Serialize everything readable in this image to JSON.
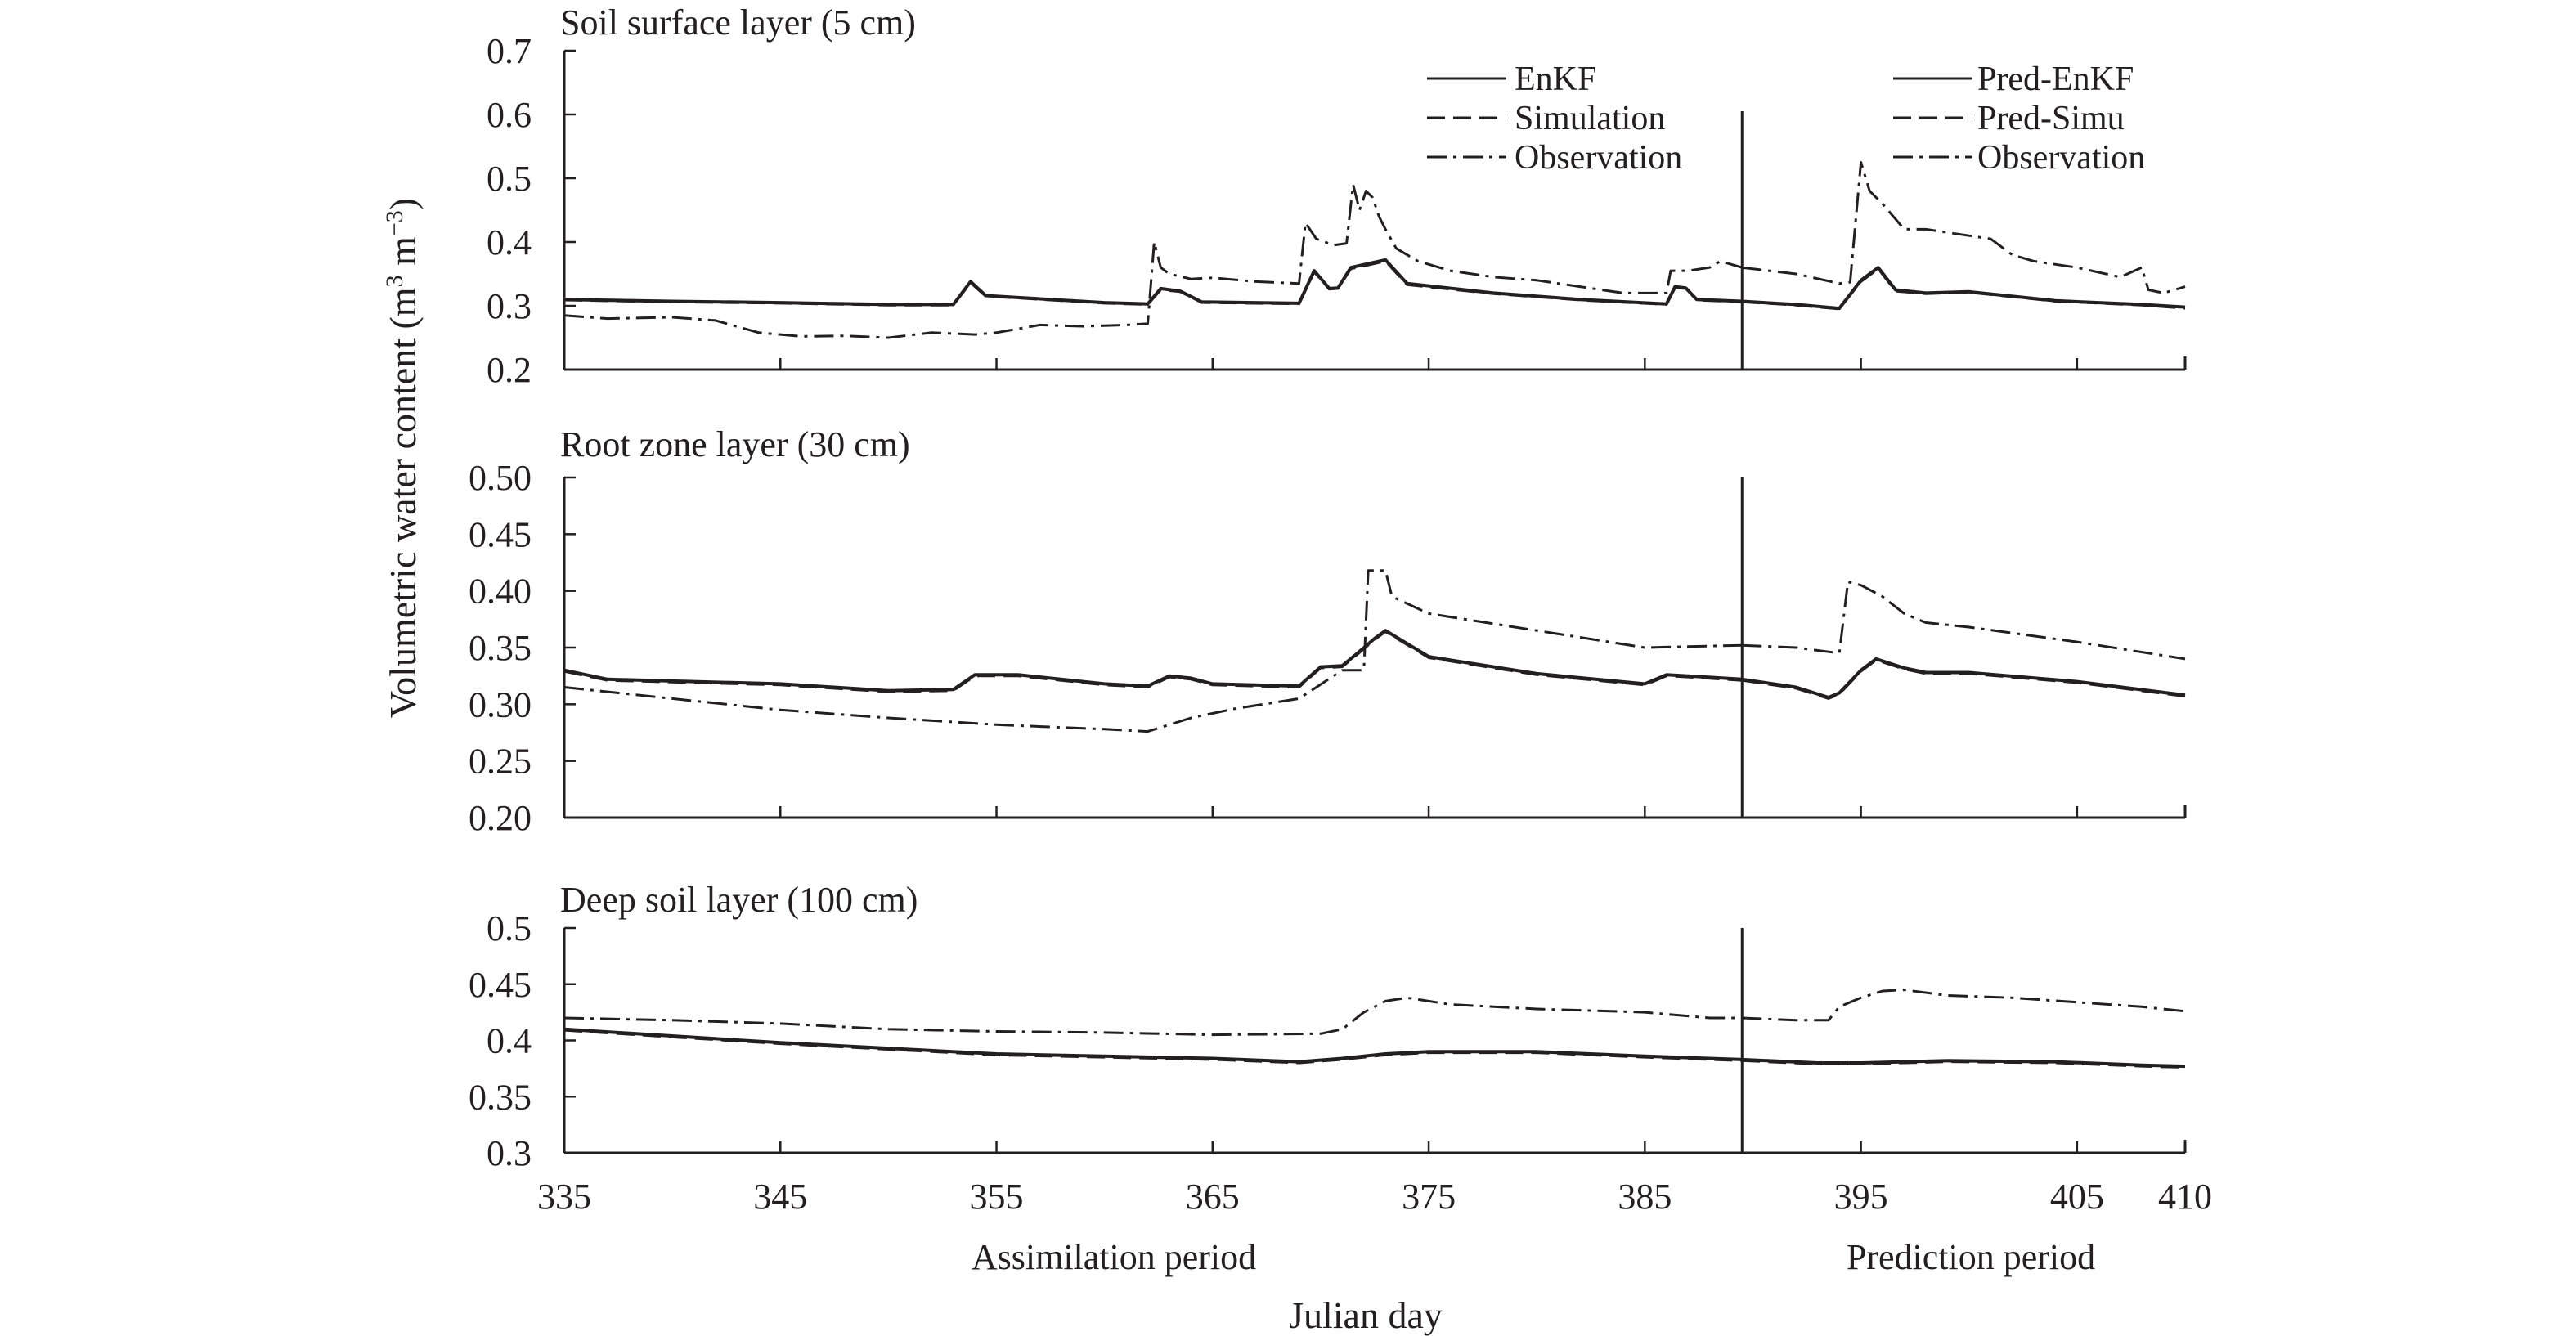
{
  "chart_data": [
    {
      "type": "line",
      "title": "Soil surface layer (5 cm)",
      "ylim": [
        0.2,
        0.7
      ],
      "yticks": [
        "0.2",
        "0.3",
        "0.4",
        "0.5",
        "0.6",
        "0.7"
      ],
      "series": [
        {
          "name": "EnKF",
          "style": "solid",
          "x": [
            335,
            340,
            345,
            350,
            353,
            353.8,
            354.5,
            356,
            360,
            362,
            362.6,
            363.5,
            364.5,
            369,
            369.7,
            370.4,
            370.8,
            371.4,
            372.2,
            373,
            374,
            378,
            382,
            386,
            386.4,
            386.9,
            387.4,
            389.5
          ],
          "y": [
            0.31,
            0.307,
            0.305,
            0.302,
            0.302,
            0.338,
            0.316,
            0.313,
            0.305,
            0.303,
            0.327,
            0.323,
            0.306,
            0.304,
            0.355,
            0.327,
            0.328,
            0.36,
            0.366,
            0.372,
            0.335,
            0.32,
            0.31,
            0.303,
            0.33,
            0.328,
            0.31,
            0.307
          ]
        },
        {
          "name": "Simulation",
          "style": "dashed",
          "x": [
            335,
            340,
            345,
            350,
            353,
            353.8,
            354.5,
            356,
            360,
            362,
            362.6,
            363.5,
            364.5,
            369,
            369.7,
            370.4,
            370.8,
            371.4,
            372.2,
            373,
            374,
            378,
            382,
            386,
            386.4,
            386.9,
            387.4,
            389.5
          ],
          "y": [
            0.309,
            0.306,
            0.304,
            0.301,
            0.301,
            0.336,
            0.315,
            0.312,
            0.304,
            0.302,
            0.325,
            0.322,
            0.305,
            0.303,
            0.353,
            0.326,
            0.327,
            0.358,
            0.364,
            0.37,
            0.333,
            0.319,
            0.309,
            0.302,
            0.328,
            0.327,
            0.309,
            0.306
          ]
        },
        {
          "name": "Observation",
          "style": "dashdot",
          "x": [
            335,
            337,
            340,
            342,
            344,
            346,
            348,
            350,
            352,
            354,
            355,
            357,
            359,
            361,
            362,
            362.3,
            362.6,
            363,
            364,
            365,
            367,
            369,
            369.3,
            369.8,
            370.6,
            371.2,
            371.5,
            371.8,
            372.1,
            372.4,
            372.7,
            373,
            373.5,
            374.5,
            376,
            378,
            380,
            382,
            384,
            386,
            386.2,
            387,
            388,
            388.5,
            389,
            389.5
          ],
          "y": [
            0.285,
            0.28,
            0.282,
            0.277,
            0.258,
            0.252,
            0.253,
            0.25,
            0.258,
            0.255,
            0.258,
            0.27,
            0.268,
            0.27,
            0.272,
            0.4,
            0.36,
            0.35,
            0.342,
            0.344,
            0.338,
            0.335,
            0.43,
            0.405,
            0.395,
            0.398,
            0.49,
            0.45,
            0.48,
            0.47,
            0.44,
            0.42,
            0.39,
            0.37,
            0.355,
            0.345,
            0.34,
            0.33,
            0.32,
            0.32,
            0.355,
            0.355,
            0.36,
            0.37,
            0.365,
            0.36
          ]
        },
        {
          "name": "Pred-EnKF",
          "style": "solid",
          "x": [
            389.5,
            392,
            394,
            395,
            395.8,
            396.6,
            398,
            400,
            404,
            408,
            410
          ],
          "y": [
            0.307,
            0.302,
            0.296,
            0.34,
            0.36,
            0.325,
            0.32,
            0.322,
            0.308,
            0.302,
            0.298
          ]
        },
        {
          "name": "Pred-Simu",
          "style": "dashed",
          "x": [
            389.5,
            392,
            394,
            395,
            395.8,
            396.6,
            398,
            400,
            404,
            408,
            410
          ],
          "y": [
            0.306,
            0.301,
            0.295,
            0.338,
            0.358,
            0.323,
            0.319,
            0.321,
            0.307,
            0.301,
            0.296
          ]
        },
        {
          "name": "Observation",
          "style": "dashdot",
          "x": [
            389.5,
            392,
            394,
            394.5,
            395,
            395.4,
            396,
            397,
            398,
            399,
            400,
            401,
            402,
            403,
            405,
            407,
            408,
            408.3,
            409,
            410
          ],
          "y": [
            0.36,
            0.35,
            0.335,
            0.337,
            0.525,
            0.48,
            0.46,
            0.42,
            0.42,
            0.415,
            0.41,
            0.405,
            0.38,
            0.37,
            0.36,
            0.345,
            0.36,
            0.325,
            0.32,
            0.33
          ]
        }
      ],
      "legend": [
        [
          "EnKF",
          "Simulation",
          "Observation"
        ],
        [
          "Pred-EnKF",
          "Pred-Simu",
          "Observation"
        ]
      ]
    },
    {
      "type": "line",
      "title": "Root zone layer (30 cm)",
      "ylim": [
        0.2,
        0.5
      ],
      "yticks": [
        "0.20",
        "0.25",
        "0.30",
        "0.35",
        "0.40",
        "0.45",
        "0.50"
      ],
      "series": [
        {
          "name": "EnKF",
          "style": "solid",
          "x": [
            335,
            337,
            345,
            350,
            353,
            354,
            356,
            360,
            362,
            363,
            364,
            365,
            369,
            370,
            371,
            371.7,
            372.5,
            373,
            375,
            380,
            385,
            386,
            387,
            389.5
          ],
          "y": [
            0.33,
            0.322,
            0.318,
            0.312,
            0.313,
            0.326,
            0.326,
            0.318,
            0.316,
            0.325,
            0.323,
            0.318,
            0.316,
            0.333,
            0.334,
            0.345,
            0.358,
            0.365,
            0.342,
            0.327,
            0.318,
            0.326,
            0.325,
            0.322
          ]
        },
        {
          "name": "Simulation",
          "style": "dashed",
          "x": [
            335,
            337,
            345,
            350,
            353,
            354,
            356,
            360,
            362,
            363,
            364,
            365,
            369,
            370,
            371,
            371.7,
            372.5,
            373,
            375,
            380,
            385,
            386,
            387,
            389.5
          ],
          "y": [
            0.329,
            0.321,
            0.317,
            0.311,
            0.312,
            0.325,
            0.325,
            0.317,
            0.315,
            0.324,
            0.322,
            0.317,
            0.315,
            0.332,
            0.333,
            0.344,
            0.357,
            0.364,
            0.341,
            0.326,
            0.317,
            0.325,
            0.324,
            0.321
          ]
        },
        {
          "name": "Observation",
          "style": "dashdot",
          "x": [
            335,
            340,
            345,
            350,
            355,
            360,
            362,
            364,
            366,
            369,
            371,
            372,
            372.2,
            373,
            373.3,
            375,
            380,
            385,
            389.5
          ],
          "y": [
            0.315,
            0.305,
            0.295,
            0.288,
            0.282,
            0.278,
            0.276,
            0.288,
            0.296,
            0.305,
            0.33,
            0.33,
            0.418,
            0.418,
            0.395,
            0.38,
            0.365,
            0.35,
            0.352
          ]
        },
        {
          "name": "Pred-EnKF",
          "style": "solid",
          "x": [
            389.5,
            392,
            393.5,
            394,
            395,
            395.7,
            397,
            398,
            400,
            405,
            410
          ],
          "y": [
            0.322,
            0.315,
            0.306,
            0.31,
            0.33,
            0.34,
            0.332,
            0.328,
            0.328,
            0.32,
            0.308
          ]
        },
        {
          "name": "Pred-Simu",
          "style": "dashed",
          "x": [
            389.5,
            392,
            393.5,
            394,
            395,
            395.7,
            397,
            398,
            400,
            405,
            410
          ],
          "y": [
            0.321,
            0.314,
            0.305,
            0.309,
            0.329,
            0.339,
            0.331,
            0.327,
            0.327,
            0.319,
            0.307
          ]
        },
        {
          "name": "Observation",
          "style": "dashdot",
          "x": [
            389.5,
            392,
            394,
            394.4,
            395,
            396,
            397,
            398,
            400,
            405,
            410
          ],
          "y": [
            0.352,
            0.35,
            0.345,
            0.408,
            0.405,
            0.395,
            0.38,
            0.372,
            0.368,
            0.355,
            0.34
          ]
        }
      ],
      "legend": []
    },
    {
      "type": "line",
      "title": "Deep soil layer (100 cm)",
      "ylim": [
        0.3,
        0.5
      ],
      "yticks": [
        "0.3",
        "0.35",
        "0.4",
        "0.45",
        "0.5"
      ],
      "series": [
        {
          "name": "EnKF",
          "style": "solid",
          "x": [
            335,
            345,
            355,
            365,
            369,
            371,
            373,
            375,
            380,
            385,
            389.5
          ],
          "y": [
            0.41,
            0.398,
            0.388,
            0.384,
            0.381,
            0.384,
            0.388,
            0.39,
            0.39,
            0.386,
            0.383
          ]
        },
        {
          "name": "Simulation",
          "style": "dashed",
          "x": [
            335,
            345,
            355,
            365,
            369,
            371,
            373,
            375,
            380,
            385,
            389.5
          ],
          "y": [
            0.409,
            0.397,
            0.387,
            0.383,
            0.38,
            0.383,
            0.387,
            0.389,
            0.389,
            0.385,
            0.382
          ]
        },
        {
          "name": "Observation",
          "style": "dashdot",
          "x": [
            335,
            340,
            345,
            350,
            355,
            360,
            365,
            370,
            371,
            372,
            373,
            374,
            376,
            378,
            380,
            385,
            388,
            389.5
          ],
          "y": [
            0.42,
            0.418,
            0.415,
            0.41,
            0.408,
            0.407,
            0.405,
            0.406,
            0.41,
            0.425,
            0.435,
            0.438,
            0.432,
            0.43,
            0.428,
            0.425,
            0.42,
            0.42
          ]
        },
        {
          "name": "Pred-EnKF",
          "style": "solid",
          "x": [
            389.5,
            393,
            395,
            399,
            404,
            408,
            410
          ],
          "y": [
            0.383,
            0.38,
            0.38,
            0.382,
            0.381,
            0.378,
            0.377
          ]
        },
        {
          "name": "Pred-Simu",
          "style": "dashed",
          "x": [
            389.5,
            393,
            395,
            399,
            404,
            408,
            410
          ],
          "y": [
            0.382,
            0.379,
            0.379,
            0.381,
            0.38,
            0.377,
            0.376
          ]
        },
        {
          "name": "Observation",
          "style": "dashdot",
          "x": [
            389.5,
            392,
            393.5,
            394,
            395,
            396,
            397,
            399,
            402,
            405,
            408,
            410
          ],
          "y": [
            0.42,
            0.418,
            0.418,
            0.43,
            0.438,
            0.444,
            0.445,
            0.44,
            0.438,
            0.434,
            0.43,
            0.426
          ]
        }
      ],
      "legend": []
    }
  ],
  "x_axis": {
    "ticks": [
      "335",
      "345",
      "355",
      "365",
      "375",
      "385",
      "395",
      "405",
      "410"
    ],
    "tick_values": [
      335,
      345,
      355,
      365,
      375,
      385,
      395,
      405,
      410
    ],
    "xlim": [
      335,
      410
    ],
    "label": "Julian day",
    "divider": 389.5
  },
  "y_axis_label": "Volumetric water content (m³ m⁻³)",
  "periods": {
    "assimilation": "Assimilation period",
    "prediction": "Prediction period"
  }
}
